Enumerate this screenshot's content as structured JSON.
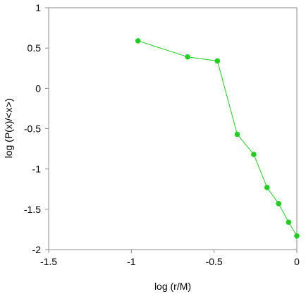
{
  "chart_data": {
    "type": "line",
    "title": "",
    "xlabel": "log (r/M)",
    "ylabel": "log (P(x)/<x>)",
    "xlim": [
      -1.5,
      0
    ],
    "ylim": [
      -2,
      1
    ],
    "x_ticks": [
      "-1.5",
      "-1",
      "-0.5",
      "0"
    ],
    "y_ticks": [
      "1",
      "0.5",
      "0",
      "-0.5",
      "-1",
      "-1.5",
      "-2"
    ],
    "grid": false,
    "legend": "none",
    "series": [
      {
        "color": "#22cc22",
        "marker": "circle",
        "points": [
          {
            "x": -0.96,
            "y": 0.59
          },
          {
            "x": -0.66,
            "y": 0.39
          },
          {
            "x": -0.48,
            "y": 0.34
          },
          {
            "x": -0.36,
            "y": -0.57
          },
          {
            "x": -0.26,
            "y": -0.82
          },
          {
            "x": -0.18,
            "y": -1.23
          },
          {
            "x": -0.11,
            "y": -1.43
          },
          {
            "x": -0.05,
            "y": -1.66
          },
          {
            "x": 0.0,
            "y": -1.83
          }
        ]
      }
    ]
  }
}
